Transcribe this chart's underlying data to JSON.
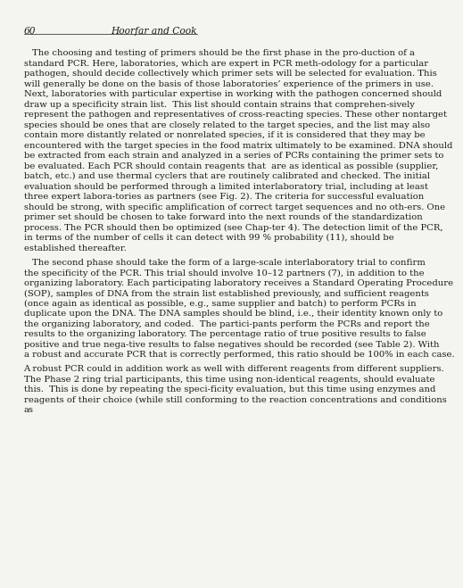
{
  "page_number": "60",
  "header_right": "Hoorfar and Cook",
  "background_color": "#f5f5f0",
  "text_color": "#1a1a1a",
  "paragraphs": [
    {
      "indent": true,
      "text": "The choosing and testing of primers should be the first phase in the pro-duction of a standard PCR. Here, laboratories, which are expert in PCR meth-odology for a particular pathogen, should decide collectively which primer sets will be selected for evaluation. This will generally be done on the basis of those laboratories’ experience of the primers in use. Next, laboratories with particular expertise in working with the pathogen concerned should draw up a specificity strain list.  This list should contain strains that comprehen-sively represent the pathogen and representatives of cross-reacting species. These other nontarget species should be ones that are closely related to the target species, and the list may also contain more distantly related or nonrelated species, if it is considered that they may be encountered with the target species in the food matrix ultimately to be examined. DNA should be extracted from each strain and analyzed in a series of PCRs containing the primer sets to be evaluated. Each PCR should contain reagents that  are as identical as possible (supplier, batch, etc.) and use thermal cyclers that are routinely calibrated and checked. The initial evaluation should be performed through a limited interlaboratory trial, including at least three expert labora-tories as partners (see Fig. 2). The criteria for successful evaluation should be strong, with specific amplification of correct target sequences and no oth-ers. One primer set should be chosen to take forward into the next rounds of the standardization process. The PCR should then be optimized (see Chap-ter 4). The detection limit of the PCR,  in terms of the number of cells it can detect with 99 % probability (11), should be established thereafter."
    },
    {
      "indent": true,
      "text": "The second phase should take the form of a large-scale interlaboratory trial to confirm the specificity of the PCR. This trial should involve 10–12 partners (7), in addition to the organizing laboratory. Each participating laboratory receives a Standard Operating Procedure (SOP), samples of DNA from the strain list established previously, and sufficient reagents (once again as identical as possible, e.g., same supplier and batch) to perform PCRs in duplicate upon the DNA. The DNA samples should be blind, i.e., their identity known only to the organizing laboratory, and coded.  The partici-pants perform the PCRs and report the results to the organizing laboratory. The percentage ratio of true positive results to false positive and true nega-tive results to false negatives should be recorded (see Table 2). With a robust and accurate PCR that is correctly performed, this ratio should be 100% in each case."
    },
    {
      "indent": false,
      "text": "A robust PCR could in addition work as well with different reagents from different suppliers. The Phase 2 ring trial participants, this time using non-identical reagents, should evaluate this.  This is done by repeating the speci-ficity evaluation, but this time using enzymes and reagents of their choice (while still conforming to the reaction concentrations and conditions as"
    }
  ]
}
